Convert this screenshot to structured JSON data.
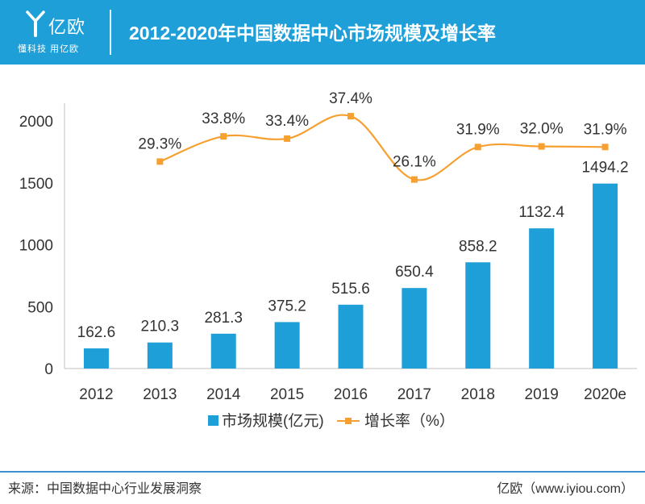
{
  "header": {
    "logo_text": "亿欧",
    "logo_slogan": "懂科技 用亿欧",
    "title": "2012-2020年中国数据中心市场规模及增长率"
  },
  "footer": {
    "source": "来源：中国数据中心行业发展洞察",
    "credit": "亿欧（www.iyiou.com）"
  },
  "colors": {
    "header_bg": "#1e9fd8",
    "bar": "#1e9fd8",
    "line": "#f5a030",
    "footer_line": "#3d8fd0"
  },
  "icons": {
    "logo": "yiou-logo-icon"
  },
  "chart_data": {
    "type": "bar",
    "categories": [
      "2012",
      "2013",
      "2014",
      "2015",
      "2016",
      "2017",
      "2018",
      "2019",
      "2020e"
    ],
    "ylim": [
      0,
      2000
    ],
    "yticks": [
      "0",
      "500",
      "1000",
      "1500",
      "2000"
    ],
    "series": [
      {
        "name": "市场规模(亿元)",
        "type": "bar",
        "values": [
          162.6,
          210.3,
          281.3,
          375.2,
          515.6,
          650.4,
          858.2,
          1132.4,
          1494.2
        ],
        "labels": [
          "162.6",
          "210.3",
          "281.3",
          "375.2",
          "515.6",
          "650.4",
          "858.2",
          "1132.4",
          "1494.2"
        ]
      },
      {
        "name": "增长率（%）",
        "type": "line",
        "values": [
          null,
          29.3,
          33.8,
          33.4,
          37.4,
          26.1,
          31.9,
          32.0,
          31.9
        ],
        "labels": [
          "",
          "29.3%",
          "33.8%",
          "33.4%",
          "37.4%",
          "26.1%",
          "31.9%",
          "32.0%",
          "31.9%"
        ]
      }
    ],
    "legend_position": "bottom-center",
    "grid": false
  }
}
